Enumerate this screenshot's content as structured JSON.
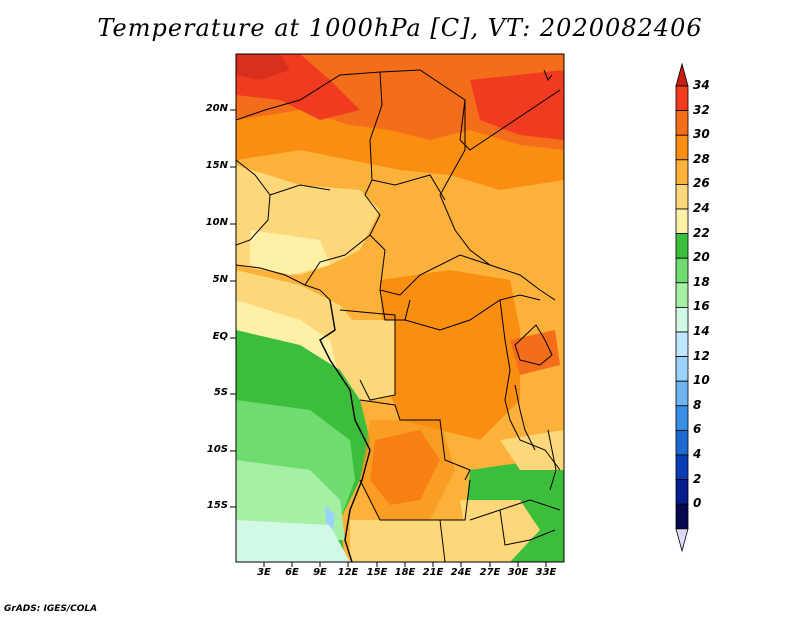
{
  "title": "Temperature at 1000hPa [C], VT: 2020082406",
  "credit": "GrADS: IGES/COLA",
  "map": {
    "lat_labels": [
      "20N",
      "15N",
      "10N",
      "5N",
      "EQ",
      "5S",
      "10S",
      "15S"
    ],
    "lon_labels": [
      "3E",
      "6E",
      "9E",
      "12E",
      "15E",
      "18E",
      "21E",
      "24E",
      "27E",
      "30E",
      "33E"
    ]
  },
  "colorbar": {
    "labels": [
      "34",
      "32",
      "30",
      "28",
      "26",
      "24",
      "22",
      "20",
      "18",
      "16",
      "14",
      "12",
      "10",
      "8",
      "6",
      "4",
      "2",
      "0"
    ],
    "colors": [
      "#d7301f",
      "#f03b20",
      "#f46d1a",
      "#f98e10",
      "#fbb13a",
      "#fdd87a",
      "#fff0a8",
      "#3cbe3c",
      "#6fdc6f",
      "#a6f0a6",
      "#d2f8e6",
      "#bfe6ff",
      "#9ad2fa",
      "#6eb4f0",
      "#3a8ee6",
      "#1e6ad2",
      "#0a3cb4",
      "#061e8c",
      "#050a50"
    ],
    "top_arrow_color": "#c81e14",
    "bottom_arrow_color": "#e0d8f8"
  }
}
